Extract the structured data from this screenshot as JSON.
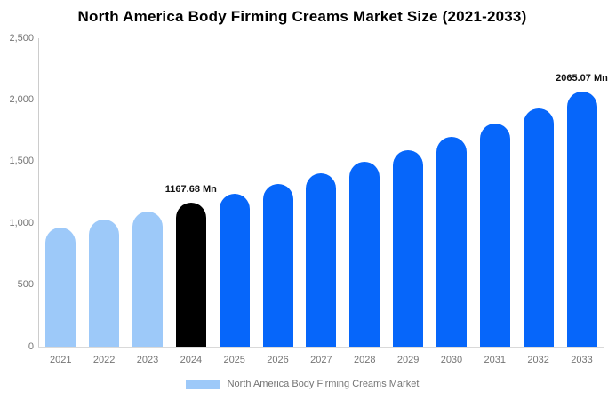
{
  "title": "North America Body Firming Creams Market Size (2021-2033)",
  "legend": {
    "label": "North America Body Firming Creams Market",
    "swatch_color": "#9DC9F9"
  },
  "colors": {
    "light_blue": "#9DC9F9",
    "blue": "#0666FA",
    "black": "#000000",
    "axis_text": "#757575",
    "axis_line": "#cccccc",
    "annotation_text": "#111111"
  },
  "chart_data": {
    "type": "bar",
    "title": "North America Body Firming Creams Market Size (2021-2033)",
    "unit": "Mn",
    "categories": [
      "2021",
      "2022",
      "2023",
      "2024",
      "2025",
      "2026",
      "2027",
      "2028",
      "2029",
      "2030",
      "2031",
      "2032",
      "2033"
    ],
    "values": [
      962,
      1027,
      1094,
      1167.68,
      1237,
      1320,
      1408,
      1498,
      1592,
      1700,
      1808,
      1932,
      2065.07
    ],
    "bar_colors": [
      "#9DC9F9",
      "#9DC9F9",
      "#9DC9F9",
      "#000000",
      "#0666FA",
      "#0666FA",
      "#0666FA",
      "#0666FA",
      "#0666FA",
      "#0666FA",
      "#0666FA",
      "#0666FA",
      "#0666FA"
    ],
    "annotations": [
      {
        "index": 3,
        "text": "1167.68 Mn"
      },
      {
        "index": 12,
        "text": "2065.07 Mn"
      }
    ],
    "y_ticks": [
      {
        "value": 0,
        "label": "0"
      },
      {
        "value": 500,
        "label": "500"
      },
      {
        "value": 1000,
        "label": "1,000"
      },
      {
        "value": 1500,
        "label": "1,500"
      },
      {
        "value": 2000,
        "label": "2,000"
      },
      {
        "value": 2500,
        "label": "2,500"
      }
    ],
    "ylim": [
      0,
      2500
    ],
    "xlabel": "",
    "ylabel": "",
    "grid": false,
    "legend_position": "bottom"
  }
}
